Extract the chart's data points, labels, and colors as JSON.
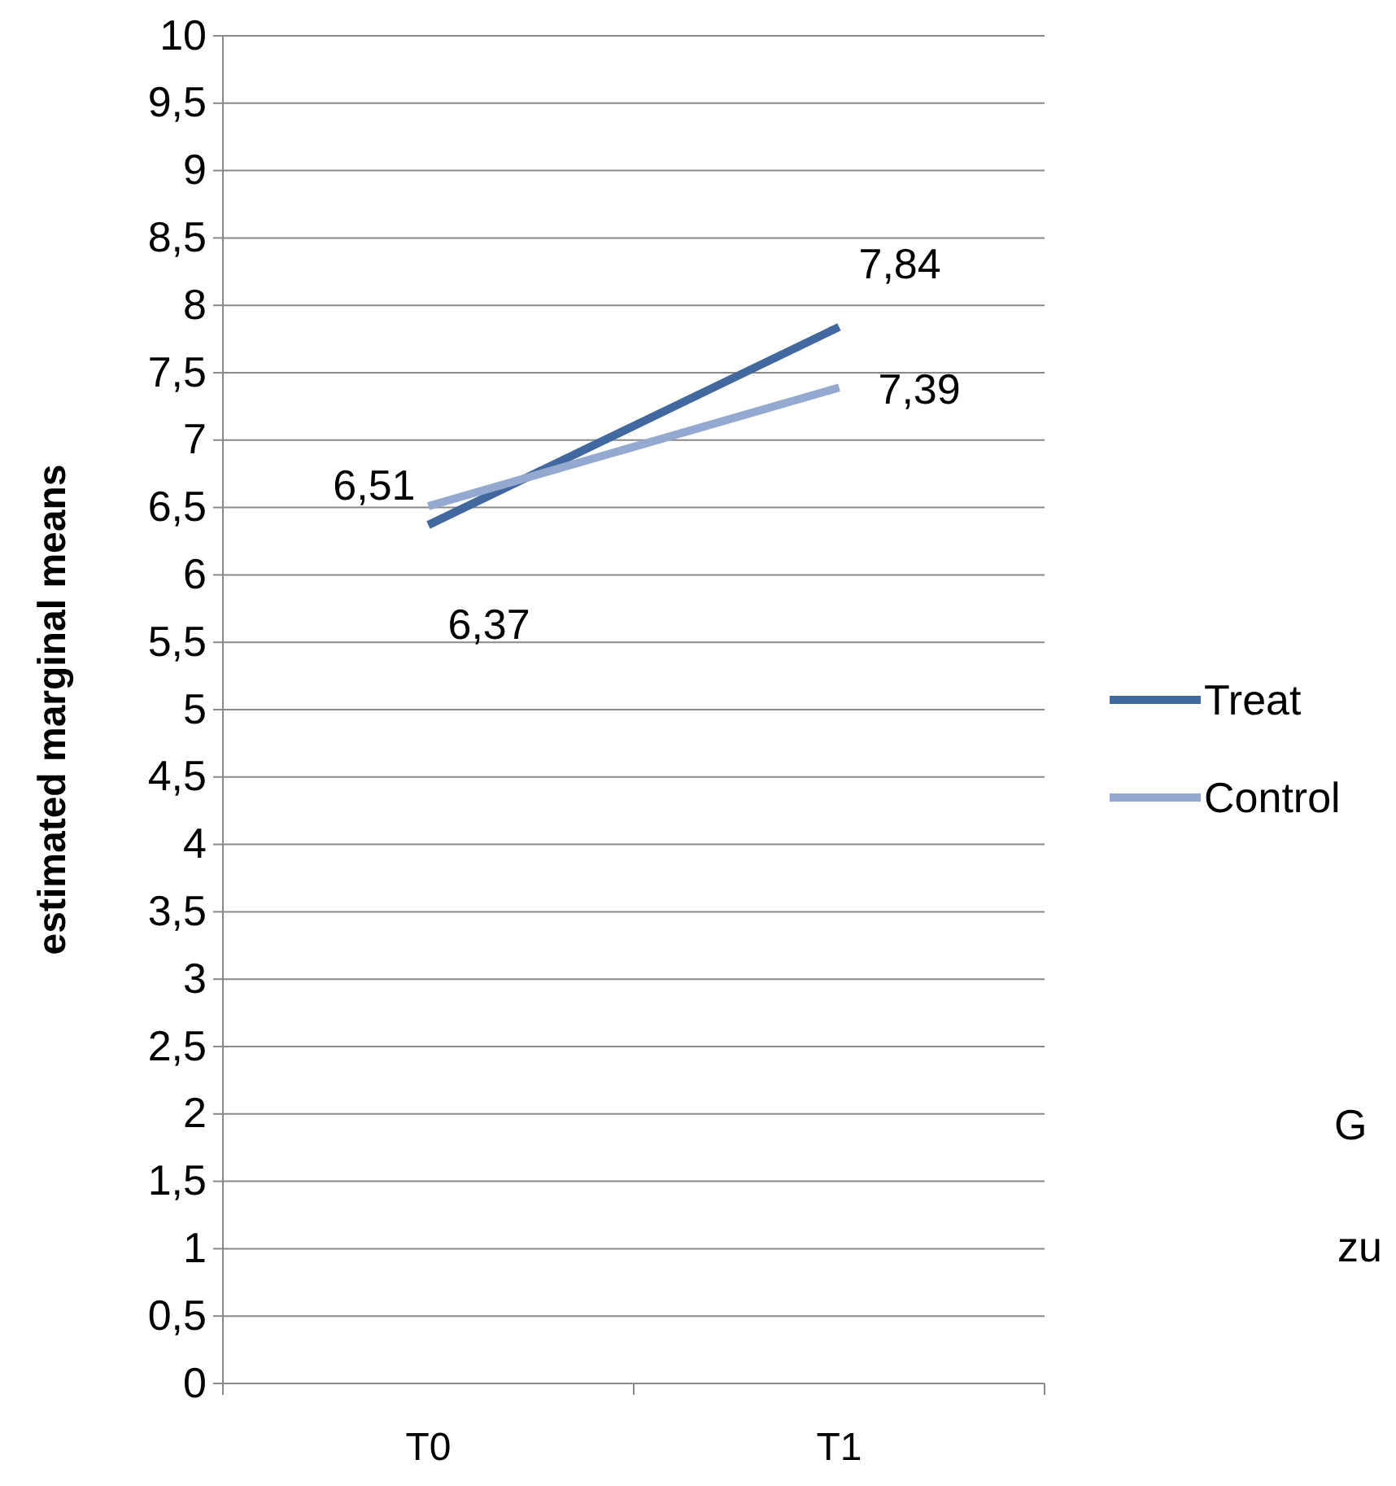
{
  "chart_data": {
    "type": "line",
    "ylabel": "estimated marginal means",
    "categories": [
      "T0",
      "T1"
    ],
    "series": [
      {
        "name": "Treat",
        "color": "#41699f",
        "values": [
          6.37,
          7.84
        ],
        "value_labels": [
          "6,37",
          "7,84"
        ]
      },
      {
        "name": "Control",
        "color": "#93a9d0",
        "values": [
          6.51,
          7.39
        ],
        "value_labels": [
          "6,51",
          "7,39"
        ]
      }
    ],
    "ylim": [
      0,
      10
    ],
    "yticks": [
      0,
      {
        "value": 0.5,
        "label": "0,5"
      },
      1,
      {
        "value": 1.5,
        "label": "1,5"
      },
      2,
      {
        "value": 2.5,
        "label": "2,5"
      },
      3,
      {
        "value": 3.5,
        "label": "3,5"
      },
      4,
      {
        "value": 4.5,
        "label": "4,5"
      },
      5,
      {
        "value": 5.5,
        "label": "5,5"
      },
      6,
      {
        "value": 6.5,
        "label": "6,5"
      },
      7,
      {
        "value": 7.5,
        "label": "7,5"
      },
      8,
      {
        "value": 8.5,
        "label": "8,5"
      },
      9,
      {
        "value": 9.5,
        "label": "9,5"
      },
      10
    ],
    "grid": "y",
    "legend": "right",
    "marker": "none",
    "line_style": "solid",
    "annotations": [
      "G",
      "zu"
    ]
  }
}
